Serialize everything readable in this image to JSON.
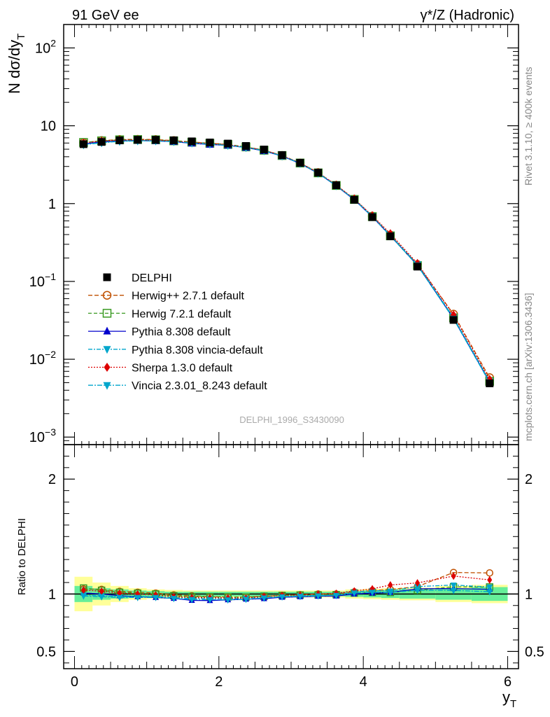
{
  "header": {
    "left_title": "91 GeV ee",
    "right_title": "γ*/Z (Hadronic)"
  },
  "side_labels": {
    "rivet": "Rivet 3.1.10, ≥ 400k events",
    "mcplots": "mcplots.cern.ch [arXiv:1306.3436]"
  },
  "watermark": "DELPHI_1996_S3430090",
  "chart_data": [
    {
      "type": "line",
      "panel": "main",
      "yscale": "log",
      "ylabel": "N dσ/dy_T",
      "xlabel": "y_T",
      "xlim": [
        -0.15,
        6.15
      ],
      "ylim": [
        0.0008,
        200
      ],
      "yticks": [
        {
          "value": 0.001,
          "base": "10",
          "exp": "−3"
        },
        {
          "value": 0.01,
          "base": "10",
          "exp": "−2"
        },
        {
          "value": 0.1,
          "base": "10",
          "exp": "−1"
        },
        {
          "value": 1,
          "base": "1",
          "exp": ""
        },
        {
          "value": 10,
          "base": "10",
          "exp": ""
        },
        {
          "value": 100,
          "base": "10",
          "exp": "2"
        }
      ],
      "x": [
        0.125,
        0.375,
        0.625,
        0.875,
        1.125,
        1.375,
        1.625,
        1.875,
        2.125,
        2.375,
        2.625,
        2.875,
        3.125,
        3.375,
        3.625,
        3.875,
        4.125,
        4.375,
        4.75,
        5.25,
        5.75
      ],
      "data": {
        "name": "DELPHI",
        "values": [
          5.8,
          6.2,
          6.5,
          6.6,
          6.6,
          6.5,
          6.3,
          6.1,
          5.9,
          5.5,
          4.95,
          4.2,
          3.35,
          2.5,
          1.72,
          1.12,
          0.67,
          0.38,
          0.155,
          0.032,
          0.0049
        ]
      },
      "series": [
        {
          "name": "Herwig++ 2.7.1 default",
          "color": "#c05000",
          "dash": "6,3",
          "marker": "open-circle",
          "values": [
            6.05,
            6.45,
            6.65,
            6.7,
            6.65,
            6.45,
            6.2,
            5.95,
            5.75,
            5.35,
            4.85,
            4.15,
            3.33,
            2.5,
            1.72,
            1.14,
            0.69,
            0.395,
            0.165,
            0.038,
            0.0058
          ]
        },
        {
          "name": "Herwig 7.2.1 default",
          "color": "#3a9a22",
          "dash": "5,3",
          "marker": "open-square",
          "values": [
            6.1,
            6.4,
            6.6,
            6.65,
            6.6,
            6.4,
            6.15,
            5.95,
            5.75,
            5.35,
            4.85,
            4.15,
            3.32,
            2.48,
            1.71,
            1.13,
            0.68,
            0.385,
            0.16,
            0.034,
            0.0052
          ]
        },
        {
          "name": "Pythia 8.308 default",
          "color": "#0000cc",
          "dash": "",
          "marker": "triangle-up",
          "values": [
            5.85,
            6.2,
            6.4,
            6.45,
            6.4,
            6.25,
            5.95,
            5.75,
            5.6,
            5.25,
            4.75,
            4.08,
            3.27,
            2.45,
            1.69,
            1.12,
            0.675,
            0.385,
            0.162,
            0.0335,
            0.0051
          ]
        },
        {
          "name": "Pythia 8.308 vincia-default",
          "color": "#00a6cc",
          "dash": "6,2,2,2",
          "marker": "triangle-down",
          "values": [
            5.75,
            6.1,
            6.35,
            6.45,
            6.45,
            6.3,
            6.05,
            5.85,
            5.65,
            5.3,
            4.8,
            4.1,
            3.3,
            2.47,
            1.7,
            1.14,
            0.69,
            0.39,
            0.165,
            0.0345,
            0.0052
          ]
        },
        {
          "name": "Sherpa 1.3.0 default",
          "color": "#dd0000",
          "dash": "2,2",
          "marker": "diamond",
          "values": [
            6.0,
            6.35,
            6.55,
            6.6,
            6.55,
            6.35,
            6.1,
            5.9,
            5.7,
            5.3,
            4.85,
            4.15,
            3.32,
            2.5,
            1.73,
            1.15,
            0.7,
            0.41,
            0.17,
            0.037,
            0.0055
          ]
        },
        {
          "name": "Vincia 2.3.01_8.243 default",
          "color": "#00a6cc",
          "dash": "7,2,2,2",
          "marker": "triangle-down",
          "values": [
            5.7,
            6.05,
            6.3,
            6.4,
            6.4,
            6.25,
            6.0,
            5.8,
            5.6,
            5.25,
            4.78,
            4.1,
            3.28,
            2.46,
            1.7,
            1.13,
            0.68,
            0.385,
            0.16,
            0.033,
            0.005
          ]
        }
      ]
    },
    {
      "type": "line",
      "panel": "ratio",
      "ylabel": "Ratio to DELPHI",
      "xlabel": "y_T",
      "xlim": [
        -0.15,
        6.15
      ],
      "ylim": [
        0.35,
        2.3
      ],
      "yticks": [
        {
          "value": 0.5,
          "label": "0.5"
        },
        {
          "value": 1,
          "label": "1"
        },
        {
          "value": 2,
          "label": "2"
        }
      ],
      "xticks": [
        {
          "value": 0,
          "label": "0"
        },
        {
          "value": 2,
          "label": "2"
        },
        {
          "value": 4,
          "label": "4"
        },
        {
          "value": 6,
          "label": "6"
        }
      ],
      "bin_edges": [
        0,
        0.25,
        0.5,
        0.75,
        1.0,
        1.25,
        1.5,
        1.75,
        2.0,
        2.25,
        2.5,
        2.75,
        3.0,
        3.25,
        3.5,
        3.75,
        4.0,
        4.25,
        4.5,
        5.0,
        5.5,
        6.0
      ],
      "band_inner": [
        0.07,
        0.05,
        0.04,
        0.03,
        0.025,
        0.02,
        0.02,
        0.02,
        0.02,
        0.02,
        0.02,
        0.02,
        0.02,
        0.02,
        0.02,
        0.025,
        0.03,
        0.035,
        0.04,
        0.05,
        0.06
      ],
      "band_outer": [
        0.15,
        0.1,
        0.07,
        0.05,
        0.04,
        0.035,
        0.03,
        0.03,
        0.03,
        0.03,
        0.03,
        0.03,
        0.03,
        0.03,
        0.03,
        0.04,
        0.045,
        0.05,
        0.055,
        0.07,
        0.08
      ]
    }
  ]
}
